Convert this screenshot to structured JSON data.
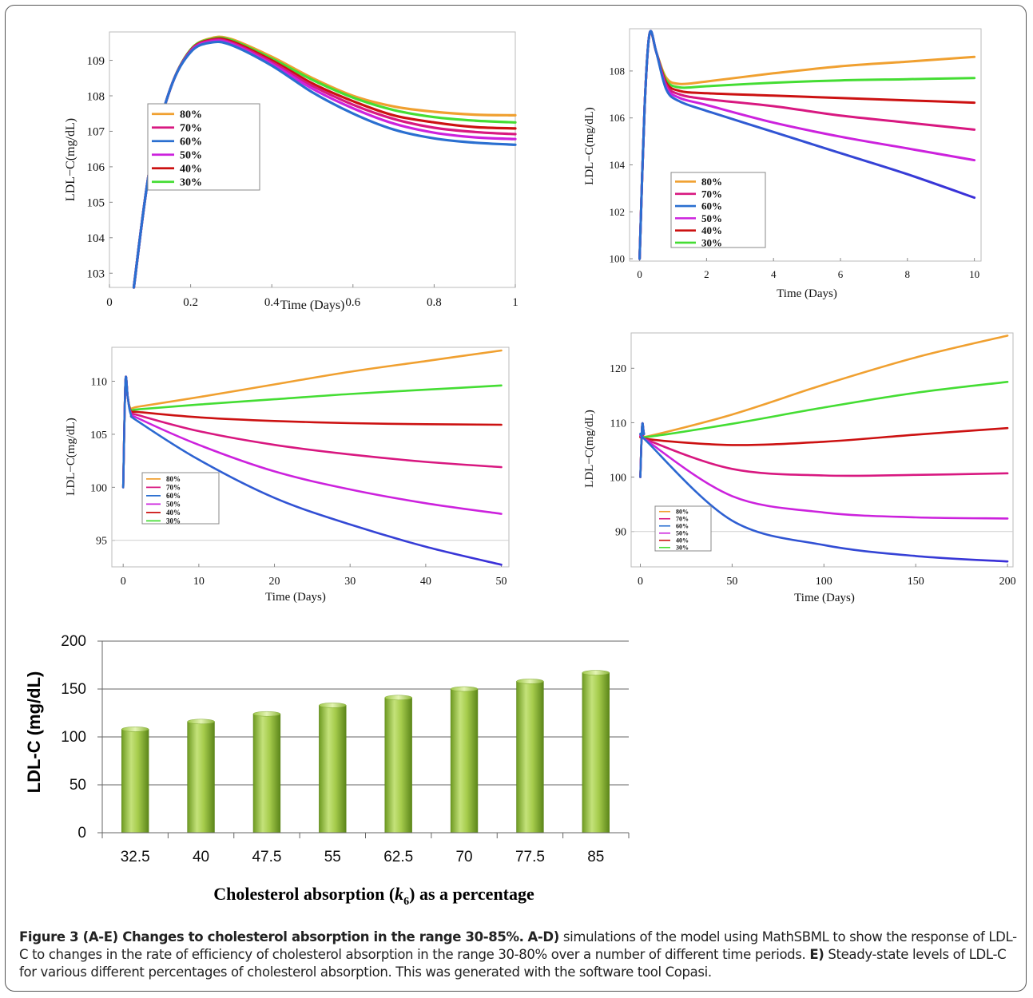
{
  "caption": {
    "title": "Figure 3 (A-E) Changes to cholesterol absorption in the range 30-85%.",
    "label_ad": "A-D)",
    "text_ad": "simulations of the model using MathSBML to show the response of LDL-C to changes in the rate of efficiency of cholesterol absorption in the range 30-80% over a number of different time periods.",
    "label_e": "E)",
    "text_e": "Steady-state levels of LDL-C for various different percentages of cholesterol absorption. This was generated with the software tool Copasi."
  },
  "colors": {
    "80%": "#f0a030",
    "70%": "#d81880",
    "60%": "#2a6fd0",
    "50%": "#cc22dd",
    "40%": "#cc1111",
    "30%": "#44dd33",
    "blue_end": "#3a2ed8",
    "bar_light": "#d4ec90",
    "bar_mid": "#9ac440",
    "bar_dark": "#5e8a1c"
  },
  "chart_data": [
    {
      "type": "line",
      "panel": "A",
      "xlabel": "Time (Days)",
      "ylabel": "LDL−C(mg/dL)",
      "xlim": [
        0,
        1
      ],
      "ylim": [
        102.6,
        109.8
      ],
      "xticks": [
        "0",
        "0.2",
        "0.4",
        "0.6",
        "0.8",
        "1"
      ],
      "xtick_values": [
        0,
        0.2,
        0.4,
        0.6,
        0.8,
        1
      ],
      "yticks": [
        "103",
        "104",
        "105",
        "106",
        "107",
        "108",
        "109"
      ],
      "ytick_values": [
        103,
        104,
        105,
        106,
        107,
        108,
        109
      ],
      "legend": [
        "80%",
        "70%",
        "60%",
        "50%",
        "40%",
        "30%"
      ],
      "series": [
        {
          "name": "80%",
          "x": [
            0.06,
            0.1,
            0.15,
            0.2,
            0.25,
            0.3,
            0.4,
            0.5,
            0.6,
            0.7,
            0.8,
            0.9,
            1.0
          ],
          "y": [
            102.6,
            106.0,
            108.2,
            109.3,
            109.62,
            109.6,
            109.1,
            108.5,
            108.0,
            107.7,
            107.55,
            107.47,
            107.45
          ]
        },
        {
          "name": "30%",
          "x": [
            0.06,
            0.1,
            0.15,
            0.2,
            0.25,
            0.3,
            0.4,
            0.5,
            0.6,
            0.7,
            0.8,
            0.9,
            1.0
          ],
          "y": [
            102.6,
            106.0,
            108.2,
            109.3,
            109.6,
            109.57,
            109.05,
            108.45,
            107.95,
            107.6,
            107.4,
            107.3,
            107.25
          ]
        },
        {
          "name": "40%",
          "x": [
            0.06,
            0.1,
            0.15,
            0.2,
            0.25,
            0.3,
            0.4,
            0.5,
            0.6,
            0.7,
            0.8,
            0.9,
            1.0
          ],
          "y": [
            102.6,
            106.0,
            108.2,
            109.28,
            109.58,
            109.54,
            109.0,
            108.35,
            107.85,
            107.45,
            107.25,
            107.12,
            107.08
          ]
        },
        {
          "name": "70%",
          "x": [
            0.06,
            0.1,
            0.15,
            0.2,
            0.25,
            0.3,
            0.4,
            0.5,
            0.6,
            0.7,
            0.8,
            0.9,
            1.0
          ],
          "y": [
            102.6,
            106.0,
            108.2,
            109.27,
            109.56,
            109.5,
            108.95,
            108.28,
            107.75,
            107.35,
            107.1,
            106.98,
            106.92
          ]
        },
        {
          "name": "50%",
          "x": [
            0.06,
            0.1,
            0.15,
            0.2,
            0.25,
            0.3,
            0.4,
            0.5,
            0.6,
            0.7,
            0.8,
            0.9,
            1.0
          ],
          "y": [
            102.6,
            106.0,
            108.2,
            109.25,
            109.53,
            109.47,
            108.9,
            108.2,
            107.65,
            107.22,
            106.96,
            106.83,
            106.78
          ]
        },
        {
          "name": "60%",
          "x": [
            0.06,
            0.1,
            0.15,
            0.2,
            0.25,
            0.3,
            0.4,
            0.5,
            0.6,
            0.7,
            0.8,
            0.9,
            1.0
          ],
          "y": [
            102.6,
            106.0,
            108.2,
            109.23,
            109.5,
            109.43,
            108.85,
            108.1,
            107.5,
            107.05,
            106.8,
            106.68,
            106.62
          ]
        }
      ]
    },
    {
      "type": "line",
      "panel": "B",
      "xlabel": "Time (Days)",
      "ylabel": "LDL−C(mg/dL)",
      "xlim": [
        -0.3,
        10.2
      ],
      "ylim": [
        99.9,
        109.8
      ],
      "xticks": [
        "0",
        "2",
        "4",
        "6",
        "8",
        "10"
      ],
      "xtick_values": [
        0,
        2,
        4,
        6,
        8,
        10
      ],
      "yticks": [
        "100",
        "102",
        "104",
        "106",
        "108"
      ],
      "ytick_values": [
        100,
        102,
        104,
        106,
        108
      ],
      "legend": [
        "80%",
        "70%",
        "60%",
        "50%",
        "40%",
        "30%"
      ],
      "series": [
        {
          "name": "80%",
          "x": [
            0,
            0.15,
            0.3,
            0.5,
            0.8,
            1.2,
            2,
            4,
            6,
            8,
            10
          ],
          "y": [
            100.0,
            106.5,
            109.6,
            108.8,
            107.7,
            107.45,
            107.55,
            107.9,
            108.2,
            108.4,
            108.6
          ]
        },
        {
          "name": "30%",
          "x": [
            0,
            0.15,
            0.3,
            0.5,
            0.8,
            1.2,
            2,
            4,
            6,
            8,
            10
          ],
          "y": [
            100.0,
            106.5,
            109.6,
            108.8,
            107.6,
            107.3,
            107.35,
            107.5,
            107.6,
            107.65,
            107.7
          ]
        },
        {
          "name": "40%",
          "x": [
            0,
            0.15,
            0.3,
            0.5,
            0.8,
            1.2,
            2,
            4,
            6,
            8,
            10
          ],
          "y": [
            100.0,
            106.5,
            109.6,
            108.8,
            107.5,
            107.15,
            107.05,
            106.95,
            106.85,
            106.75,
            106.65
          ]
        },
        {
          "name": "70%",
          "x": [
            0,
            0.15,
            0.3,
            0.5,
            0.8,
            1.2,
            2,
            4,
            6,
            8,
            10
          ],
          "y": [
            100.0,
            106.5,
            109.6,
            108.8,
            107.4,
            107.0,
            106.8,
            106.5,
            106.1,
            105.8,
            105.5
          ]
        },
        {
          "name": "50%",
          "x": [
            0,
            0.15,
            0.3,
            0.5,
            0.8,
            1.2,
            2,
            4,
            6,
            8,
            10
          ],
          "y": [
            100.0,
            106.5,
            109.6,
            108.8,
            107.3,
            106.85,
            106.55,
            105.8,
            105.2,
            104.7,
            104.2
          ]
        },
        {
          "name": "60%",
          "x": [
            0,
            0.15,
            0.3,
            0.5,
            0.8,
            1.2,
            2,
            4,
            6,
            8,
            10
          ],
          "y": [
            100.0,
            106.5,
            109.6,
            108.8,
            107.2,
            106.7,
            106.3,
            105.4,
            104.5,
            103.6,
            102.6
          ]
        }
      ]
    },
    {
      "type": "line",
      "panel": "C",
      "xlabel": "Time (Days)",
      "ylabel": "LDL−C(mg/dL)",
      "xlim": [
        -1.5,
        51
      ],
      "ylim": [
        92.5,
        113.2
      ],
      "xticks": [
        "0",
        "10",
        "20",
        "30",
        "40",
        "50"
      ],
      "xtick_values": [
        0,
        10,
        20,
        30,
        40,
        50
      ],
      "yticks": [
        "95",
        "100",
        "105",
        "110"
      ],
      "ytick_values": [
        95,
        100,
        105,
        110
      ],
      "legend": [
        "80%",
        "70%",
        "60%",
        "50%",
        "40%",
        "30%"
      ],
      "series": [
        {
          "name": "80%",
          "x": [
            0,
            0.3,
            0.6,
            1,
            2,
            10,
            20,
            30,
            40,
            50
          ],
          "y": [
            100.0,
            110.0,
            108.5,
            107.4,
            107.6,
            108.5,
            109.7,
            110.9,
            111.9,
            112.9
          ]
        },
        {
          "name": "30%",
          "x": [
            0,
            0.3,
            0.6,
            1,
            2,
            10,
            20,
            30,
            40,
            50
          ],
          "y": [
            100.0,
            110.0,
            108.5,
            107.3,
            107.35,
            107.8,
            108.3,
            108.8,
            109.2,
            109.6
          ]
        },
        {
          "name": "40%",
          "x": [
            0,
            0.3,
            0.6,
            1,
            2,
            10,
            20,
            30,
            40,
            50
          ],
          "y": [
            100.0,
            110.0,
            108.5,
            107.2,
            107.1,
            106.6,
            106.25,
            106.05,
            105.95,
            105.9
          ]
        },
        {
          "name": "70%",
          "x": [
            0,
            0.3,
            0.6,
            1,
            2,
            10,
            20,
            30,
            40,
            50
          ],
          "y": [
            100.0,
            110.0,
            108.5,
            107.1,
            106.8,
            105.3,
            104.0,
            103.1,
            102.4,
            101.9
          ]
        },
        {
          "name": "50%",
          "x": [
            0,
            0.3,
            0.6,
            1,
            2,
            10,
            20,
            30,
            40,
            50
          ],
          "y": [
            100.0,
            110.0,
            108.5,
            107.0,
            106.5,
            104.0,
            101.5,
            99.8,
            98.5,
            97.5
          ]
        },
        {
          "name": "60%",
          "x": [
            0,
            0.3,
            0.6,
            1,
            2,
            10,
            20,
            30,
            40,
            50
          ],
          "y": [
            100.0,
            110.0,
            108.5,
            106.9,
            106.2,
            102.6,
            99.0,
            96.5,
            94.4,
            92.7
          ]
        }
      ]
    },
    {
      "type": "line",
      "panel": "D",
      "xlabel": "Time (Days)",
      "ylabel": "LDL−C(mg/dL)",
      "xlim": [
        -5,
        203
      ],
      "ylim": [
        83.5,
        126.5
      ],
      "xticks": [
        "0",
        "50",
        "100",
        "150",
        "200"
      ],
      "xtick_values": [
        0,
        50,
        100,
        150,
        200
      ],
      "yticks": [
        "90",
        "100",
        "110",
        "120"
      ],
      "ytick_values": [
        90,
        100,
        110,
        120
      ],
      "legend": [
        "80%",
        "70%",
        "60%",
        "50%",
        "40%",
        "30%"
      ],
      "series": [
        {
          "name": "80%",
          "x": [
            0,
            1,
            2,
            4,
            50,
            100,
            150,
            200
          ],
          "y": [
            100.0,
            109.5,
            108.0,
            107.5,
            111.5,
            117.0,
            122.0,
            126.0
          ]
        },
        {
          "name": "30%",
          "x": [
            0,
            1,
            2,
            4,
            50,
            100,
            150,
            200
          ],
          "y": [
            100.0,
            109.5,
            108.0,
            107.4,
            109.8,
            112.8,
            115.5,
            117.5
          ]
        },
        {
          "name": "40%",
          "x": [
            0,
            1,
            2,
            4,
            50,
            100,
            150,
            200
          ],
          "y": [
            100.0,
            109.5,
            108.0,
            107.0,
            105.9,
            106.5,
            107.8,
            109.0
          ]
        },
        {
          "name": "70%",
          "x": [
            0,
            1,
            2,
            4,
            50,
            100,
            150,
            200
          ],
          "y": [
            100.0,
            109.5,
            108.0,
            106.8,
            101.5,
            100.3,
            100.4,
            100.7
          ]
        },
        {
          "name": "50%",
          "x": [
            0,
            1,
            2,
            4,
            50,
            100,
            150,
            200
          ],
          "y": [
            100.0,
            109.5,
            108.0,
            106.6,
            96.5,
            93.5,
            92.6,
            92.4
          ]
        },
        {
          "name": "60%",
          "x": [
            0,
            1,
            2,
            4,
            50,
            100,
            150,
            200
          ],
          "y": [
            100.0,
            109.5,
            108.0,
            106.4,
            92.0,
            87.5,
            85.5,
            84.5
          ]
        }
      ]
    },
    {
      "type": "bar",
      "panel": "E",
      "xlabel_parts": [
        "Cholesterol absorption (",
        "k",
        "6",
        ") as a percentage"
      ],
      "ylabel": "LDL-C (mg/dL)",
      "ylim": [
        0,
        200
      ],
      "yticks": [
        0,
        50,
        100,
        150,
        200
      ],
      "categories": [
        "32.5",
        "40",
        "47.5",
        "55",
        "62.5",
        "70",
        "77.5",
        "85"
      ],
      "values": [
        108,
        116,
        124,
        133,
        141,
        150,
        158,
        167
      ]
    }
  ]
}
